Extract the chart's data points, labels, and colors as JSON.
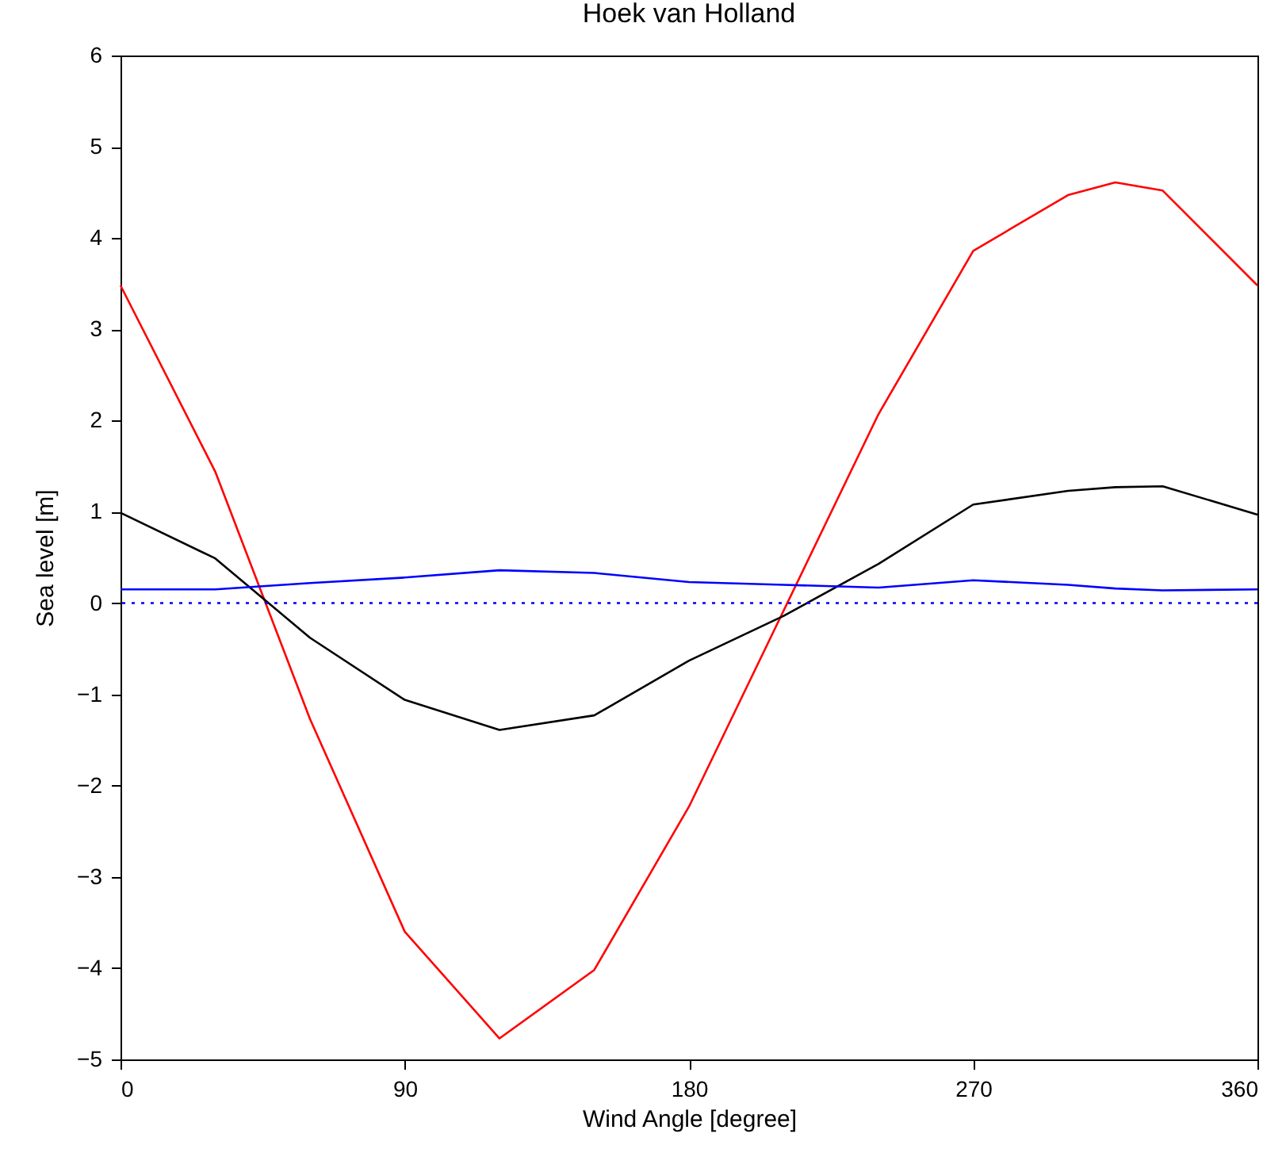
{
  "chart_data": {
    "type": "line",
    "title": "Hoek van Holland",
    "xlabel": "Wind Angle [degree]",
    "ylabel": "Sea level [m]",
    "x": [
      0,
      30,
      60,
      90,
      120,
      150,
      180,
      210,
      240,
      270,
      300,
      315,
      330,
      360
    ],
    "series": [
      {
        "color": "#ff0000",
        "values": [
          3.48,
          1.44,
          -1.27,
          -3.6,
          -4.77,
          -4.02,
          -2.23,
          -0.08,
          2.07,
          3.86,
          4.47,
          4.61,
          4.52,
          3.48
        ]
      },
      {
        "color": "#000000",
        "values": [
          0.99,
          0.49,
          -0.38,
          -1.06,
          -1.39,
          -1.23,
          -0.63,
          -0.14,
          0.43,
          1.08,
          1.23,
          1.27,
          1.28,
          0.97
        ]
      },
      {
        "color": "#0000ff",
        "values": [
          0.15,
          0.15,
          0.22,
          0.28,
          0.36,
          0.33,
          0.23,
          0.2,
          0.17,
          0.25,
          0.2,
          0.16,
          0.14,
          0.15
        ]
      }
    ],
    "xlim": [
      0,
      360
    ],
    "xticks": [
      0,
      90,
      180,
      270,
      360
    ],
    "ylim": [
      -5,
      6
    ],
    "yticks": [
      -5,
      -4,
      -3,
      -2,
      -1,
      0,
      1,
      2,
      3,
      4,
      5,
      6
    ],
    "ref_lines": [
      {
        "axis": "y",
        "value": 0,
        "color": "#0000ff",
        "line_style": "dotted"
      }
    ],
    "grid": false,
    "marker": "none",
    "line_style": "solid"
  }
}
